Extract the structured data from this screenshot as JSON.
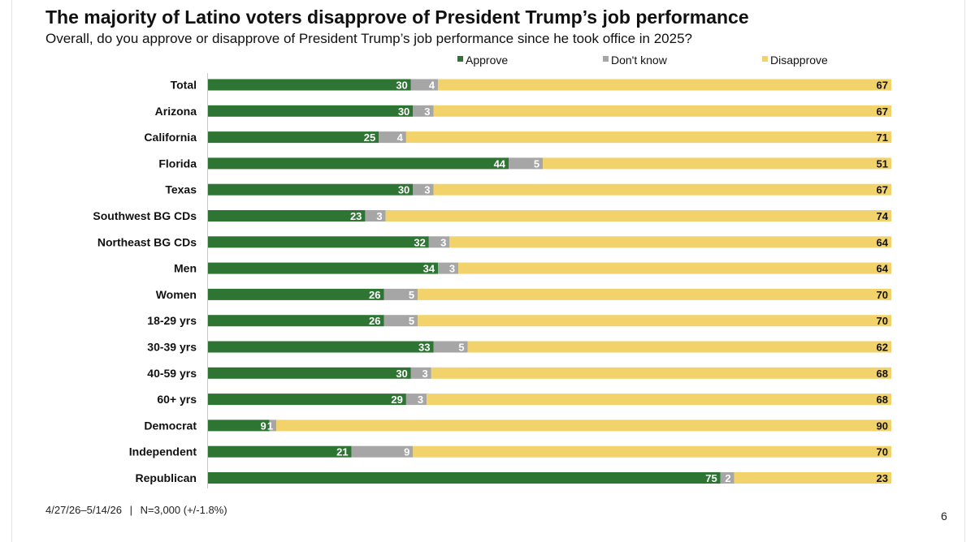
{
  "title": "The majority of Latino voters disapprove of President Trump’s job performance",
  "subtitle": "Overall, do you approve or disapprove of President Trump’s job performance since he took office in 2025?",
  "footer": {
    "dates": "4/27/26–5/14/26",
    "separator": "|",
    "sample": "N=3,000 (+/-1.8%)"
  },
  "page_number": "6",
  "chart_data": {
    "type": "bar",
    "orientation": "horizontal",
    "stacked": true,
    "percent_stacked": true,
    "title": "The majority of Latino voters disapprove of President Trump’s job performance",
    "subtitle": "Overall, do you approve or disapprove of President Trump’s job performance since he took office in 2025?",
    "legend_position": "top",
    "grid": false,
    "categories": [
      "Total",
      "Arizona",
      "California",
      "Florida",
      "Texas",
      "Southwest BG CDs",
      "Northeast BG CDs",
      "Men",
      "Women",
      "18-29 yrs",
      "30-39 yrs",
      "40-59 yrs",
      "60+ yrs",
      "Democrat",
      "Independent",
      "Republican"
    ],
    "series": [
      {
        "name": "Approve",
        "color": "#2e7533",
        "label_color": "#ffffff",
        "values": [
          30,
          30,
          25,
          44,
          30,
          23,
          32,
          34,
          26,
          26,
          33,
          30,
          29,
          9,
          21,
          75
        ]
      },
      {
        "name": "Don't know",
        "color": "#a6a6a6",
        "label_color": "#ffffff",
        "values": [
          4,
          3,
          4,
          5,
          3,
          3,
          3,
          3,
          5,
          5,
          5,
          3,
          3,
          1,
          9,
          2
        ]
      },
      {
        "name": "Disapprove",
        "color": "#f2d36b",
        "label_color": "#111111",
        "values": [
          67,
          67,
          71,
          51,
          67,
          74,
          64,
          64,
          70,
          70,
          62,
          68,
          68,
          90,
          70,
          23
        ]
      }
    ]
  }
}
